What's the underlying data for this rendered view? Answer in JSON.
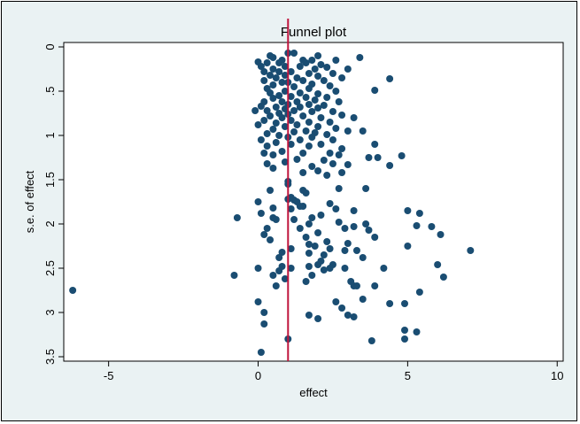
{
  "chart_data": {
    "type": "scatter",
    "title": "Funnel plot",
    "xlabel": "effect",
    "ylabel": "s.e. of effect",
    "xlim": [
      -6.5,
      10.2
    ],
    "ylim": [
      3.55,
      -0.05
    ],
    "y_reversed": true,
    "xticks": [
      -5,
      0,
      5,
      10
    ],
    "yticks": [
      0,
      0.5,
      1,
      1.5,
      2,
      2.5,
      3,
      3.5
    ],
    "ytick_labels": [
      "0",
      ".5",
      "1",
      "1.5",
      "2",
      "2.5",
      "3",
      "3.5"
    ],
    "reference_line": {
      "x": 1.0,
      "color": "#c0143c"
    },
    "point_color": "#1a4d72",
    "background_color": "#eaf2f3",
    "plot_background_color": "#ffffff",
    "grid": false,
    "points": [
      [
        1.0,
        0.07
      ],
      [
        1.2,
        0.07
      ],
      [
        0.4,
        0.1
      ],
      [
        2.0,
        0.1
      ],
      [
        3.4,
        0.12
      ],
      [
        0.5,
        0.12
      ],
      [
        0.8,
        0.15
      ],
      [
        1.5,
        0.15
      ],
      [
        1.8,
        0.15
      ],
      [
        2.6,
        0.15
      ],
      [
        0.0,
        0.17
      ],
      [
        0.3,
        0.18
      ],
      [
        0.7,
        0.18
      ],
      [
        1.6,
        0.18
      ],
      [
        2.1,
        0.2
      ],
      [
        0.1,
        0.22
      ],
      [
        0.9,
        0.22
      ],
      [
        1.4,
        0.22
      ],
      [
        2.3,
        0.23
      ],
      [
        3.0,
        0.25
      ],
      [
        0.5,
        0.25
      ],
      [
        1.9,
        0.25
      ],
      [
        0.2,
        0.28
      ],
      [
        0.7,
        0.28
      ],
      [
        1.1,
        0.28
      ],
      [
        2.5,
        0.3
      ],
      [
        1.7,
        0.3
      ],
      [
        0.4,
        0.32
      ],
      [
        0.9,
        0.32
      ],
      [
        2.0,
        0.33
      ],
      [
        1.3,
        0.35
      ],
      [
        2.8,
        0.35
      ],
      [
        0.6,
        0.35
      ],
      [
        4.4,
        0.36
      ],
      [
        0.2,
        0.38
      ],
      [
        1.5,
        0.38
      ],
      [
        2.2,
        0.38
      ],
      [
        0.8,
        0.4
      ],
      [
        1.0,
        0.4
      ],
      [
        1.8,
        0.42
      ],
      [
        0.5,
        0.43
      ],
      [
        2.4,
        0.44
      ],
      [
        1.2,
        0.45
      ],
      [
        0.3,
        0.47
      ],
      [
        1.7,
        0.47
      ],
      [
        0.9,
        0.5
      ],
      [
        2.6,
        0.5
      ],
      [
        3.9,
        0.49
      ],
      [
        0.4,
        0.52
      ],
      [
        1.4,
        0.52
      ],
      [
        2.0,
        0.53
      ],
      [
        0.7,
        0.55
      ],
      [
        1.1,
        0.56
      ],
      [
        1.6,
        0.57
      ],
      [
        2.3,
        0.57
      ],
      [
        0.5,
        0.58
      ],
      [
        1.9,
        0.6
      ],
      [
        0.2,
        0.62
      ],
      [
        0.8,
        0.62
      ],
      [
        1.3,
        0.62
      ],
      [
        2.7,
        0.62
      ],
      [
        1.0,
        0.65
      ],
      [
        1.7,
        0.65
      ],
      [
        2.2,
        0.66
      ],
      [
        0.1,
        0.67
      ],
      [
        0.6,
        0.68
      ],
      [
        1.4,
        0.68
      ],
      [
        2.0,
        0.69
      ],
      [
        0.9,
        0.7
      ],
      [
        -0.1,
        0.72
      ],
      [
        0.3,
        0.72
      ],
      [
        1.2,
        0.72
      ],
      [
        1.8,
        0.73
      ],
      [
        2.5,
        0.73
      ],
      [
        0.7,
        0.75
      ],
      [
        1.0,
        0.76
      ],
      [
        2.8,
        0.77
      ],
      [
        0.4,
        0.78
      ],
      [
        1.5,
        0.78
      ],
      [
        2.1,
        0.8
      ],
      [
        0.8,
        0.8
      ],
      [
        3.2,
        0.8
      ],
      [
        0.2,
        0.83
      ],
      [
        1.1,
        0.83
      ],
      [
        1.7,
        0.85
      ],
      [
        2.4,
        0.85
      ],
      [
        0.6,
        0.86
      ],
      [
        0.0,
        0.88
      ],
      [
        1.3,
        0.88
      ],
      [
        2.0,
        0.9
      ],
      [
        0.9,
        0.9
      ],
      [
        2.6,
        0.92
      ],
      [
        0.5,
        0.93
      ],
      [
        1.6,
        0.95
      ],
      [
        3.0,
        0.95
      ],
      [
        1.2,
        0.96
      ],
      [
        1.9,
        0.97
      ],
      [
        0.3,
        0.98
      ],
      [
        3.5,
        0.95
      ],
      [
        2.3,
        0.99
      ],
      [
        0.7,
        1.0
      ],
      [
        1.0,
        1.02
      ],
      [
        1.8,
        1.02
      ],
      [
        0.1,
        1.05
      ],
      [
        2.5,
        1.05
      ],
      [
        1.4,
        1.05
      ],
      [
        0.6,
        1.08
      ],
      [
        1.1,
        1.1
      ],
      [
        2.1,
        1.1
      ],
      [
        3.9,
        1.1
      ],
      [
        0.3,
        1.12
      ],
      [
        1.7,
        1.12
      ],
      [
        2.8,
        1.15
      ],
      [
        0.8,
        1.18
      ],
      [
        0.2,
        1.2
      ],
      [
        1.5,
        1.2
      ],
      [
        2.4,
        1.2
      ],
      [
        0.5,
        1.22
      ],
      [
        2.7,
        1.22
      ],
      [
        3.7,
        1.25
      ],
      [
        4.0,
        1.25
      ],
      [
        4.8,
        1.23
      ],
      [
        1.3,
        1.27
      ],
      [
        2.2,
        1.28
      ],
      [
        0.9,
        1.3
      ],
      [
        0.3,
        1.32
      ],
      [
        2.5,
        1.32
      ],
      [
        1.8,
        1.35
      ],
      [
        3.0,
        1.33
      ],
      [
        4.4,
        1.34
      ],
      [
        0.5,
        1.37
      ],
      [
        2.0,
        1.4
      ],
      [
        1.5,
        1.42
      ],
      [
        2.8,
        1.42
      ],
      [
        2.3,
        1.45
      ],
      [
        1.0,
        1.52
      ],
      [
        1.0,
        1.55
      ],
      [
        0.4,
        1.62
      ],
      [
        1.5,
        1.62
      ],
      [
        2.7,
        1.6
      ],
      [
        3.6,
        1.6
      ],
      [
        1.6,
        1.65
      ],
      [
        1.1,
        1.7
      ],
      [
        1.0,
        1.72
      ],
      [
        1.2,
        1.73
      ],
      [
        1.3,
        1.75
      ],
      [
        0.0,
        1.75
      ],
      [
        2.4,
        1.77
      ],
      [
        1.5,
        1.8
      ],
      [
        0.5,
        1.82
      ],
      [
        1.4,
        1.8
      ],
      [
        1.1,
        1.83
      ],
      [
        2.6,
        1.83
      ],
      [
        3.2,
        1.85
      ],
      [
        5.0,
        1.85
      ],
      [
        5.4,
        1.88
      ],
      [
        0.1,
        1.88
      ],
      [
        2.1,
        1.9
      ],
      [
        0.5,
        1.93
      ],
      [
        1.8,
        1.93
      ],
      [
        1.2,
        1.95
      ],
      [
        -0.7,
        1.93
      ],
      [
        0.6,
        1.95
      ],
      [
        1.7,
        2.0
      ],
      [
        2.7,
        1.98
      ],
      [
        3.6,
        2.0
      ],
      [
        3.2,
        2.03
      ],
      [
        5.3,
        2.02
      ],
      [
        5.8,
        2.03
      ],
      [
        0.3,
        2.05
      ],
      [
        1.4,
        2.05
      ],
      [
        2.9,
        2.05
      ],
      [
        3.7,
        2.07
      ],
      [
        2.0,
        2.1
      ],
      [
        6.1,
        2.12
      ],
      [
        0.2,
        2.12
      ],
      [
        3.9,
        2.15
      ],
      [
        1.6,
        2.15
      ],
      [
        0.4,
        2.18
      ],
      [
        2.3,
        2.2
      ],
      [
        3.0,
        2.22
      ],
      [
        1.7,
        2.23
      ],
      [
        1.9,
        2.25
      ],
      [
        5.0,
        2.25
      ],
      [
        2.4,
        2.28
      ],
      [
        1.1,
        2.28
      ],
      [
        0.8,
        2.32
      ],
      [
        2.9,
        2.3
      ],
      [
        3.3,
        2.3
      ],
      [
        7.1,
        2.3
      ],
      [
        1.7,
        2.33
      ],
      [
        2.2,
        2.35
      ],
      [
        0.7,
        2.38
      ],
      [
        3.5,
        2.38
      ],
      [
        2.1,
        2.42
      ],
      [
        2.0,
        2.46
      ],
      [
        2.5,
        2.46
      ],
      [
        6.0,
        2.46
      ],
      [
        0.8,
        2.48
      ],
      [
        1.7,
        2.48
      ],
      [
        4.2,
        2.5
      ],
      [
        0.0,
        2.5
      ],
      [
        2.2,
        2.52
      ],
      [
        2.4,
        2.5
      ],
      [
        1.1,
        2.5
      ],
      [
        2.9,
        2.5
      ],
      [
        0.7,
        2.53
      ],
      [
        -0.8,
        2.58
      ],
      [
        0.5,
        2.58
      ],
      [
        1.8,
        2.58
      ],
      [
        0.9,
        2.62
      ],
      [
        6.2,
        2.6
      ],
      [
        3.1,
        2.65
      ],
      [
        1.6,
        2.65
      ],
      [
        0.6,
        2.7
      ],
      [
        3.2,
        2.7
      ],
      [
        3.3,
        2.7
      ],
      [
        3.9,
        2.7
      ],
      [
        -6.2,
        2.75
      ],
      [
        5.4,
        2.77
      ],
      [
        3.5,
        2.85
      ],
      [
        0.0,
        2.88
      ],
      [
        2.6,
        2.88
      ],
      [
        4.4,
        2.9
      ],
      [
        4.9,
        2.9
      ],
      [
        2.8,
        2.95
      ],
      [
        0.2,
        3.0
      ],
      [
        3.0,
        3.03
      ],
      [
        1.7,
        3.03
      ],
      [
        2.0,
        3.07
      ],
      [
        3.2,
        3.05
      ],
      [
        0.2,
        3.13
      ],
      [
        4.9,
        3.2
      ],
      [
        5.3,
        3.22
      ],
      [
        1.0,
        3.3
      ],
      [
        4.9,
        3.3
      ],
      [
        3.8,
        3.32
      ],
      [
        0.1,
        3.45
      ]
    ]
  }
}
